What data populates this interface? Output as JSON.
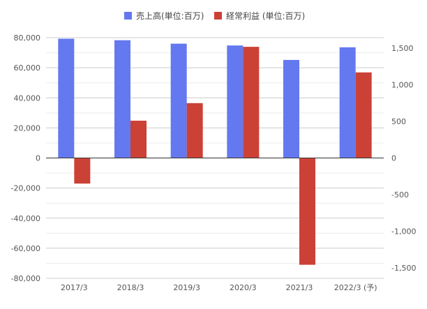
{
  "chart_data": {
    "type": "bar",
    "categories": [
      "2017/3",
      "2018/3",
      "2019/3",
      "2020/3",
      "2021/3",
      "2022/3 (予)"
    ],
    "series": [
      {
        "name": "売上高(単位:百万)",
        "axis": "left",
        "color": "#6478f0",
        "values": [
          79300,
          78300,
          76000,
          74800,
          65200,
          73600
        ]
      },
      {
        "name": "経常利益 (単位:百万)",
        "axis": "right",
        "color": "#cc4135",
        "values": [
          -350,
          510,
          750,
          1520,
          -1460,
          1170
        ]
      }
    ],
    "y_left": {
      "ylim": [
        -80000,
        80000
      ],
      "ticks": [
        80000,
        60000,
        40000,
        20000,
        0,
        -20000,
        -40000,
        -60000,
        -80000
      ],
      "tick_labels": [
        "80,000",
        "60,000",
        "40,000",
        "20,000",
        "0",
        "-20,000",
        "-40,000",
        "-60,000",
        "-80,000"
      ]
    },
    "y_right": {
      "ylim": [
        -1500,
        1500
      ],
      "ticks": [
        1500,
        1000,
        500,
        0,
        -500,
        -1000,
        -1500
      ],
      "tick_labels": [
        "1,500",
        "1,000",
        "500",
        "0",
        "-500",
        "-1,000",
        "-1,500"
      ]
    },
    "grid": true,
    "legend_position": "top"
  }
}
